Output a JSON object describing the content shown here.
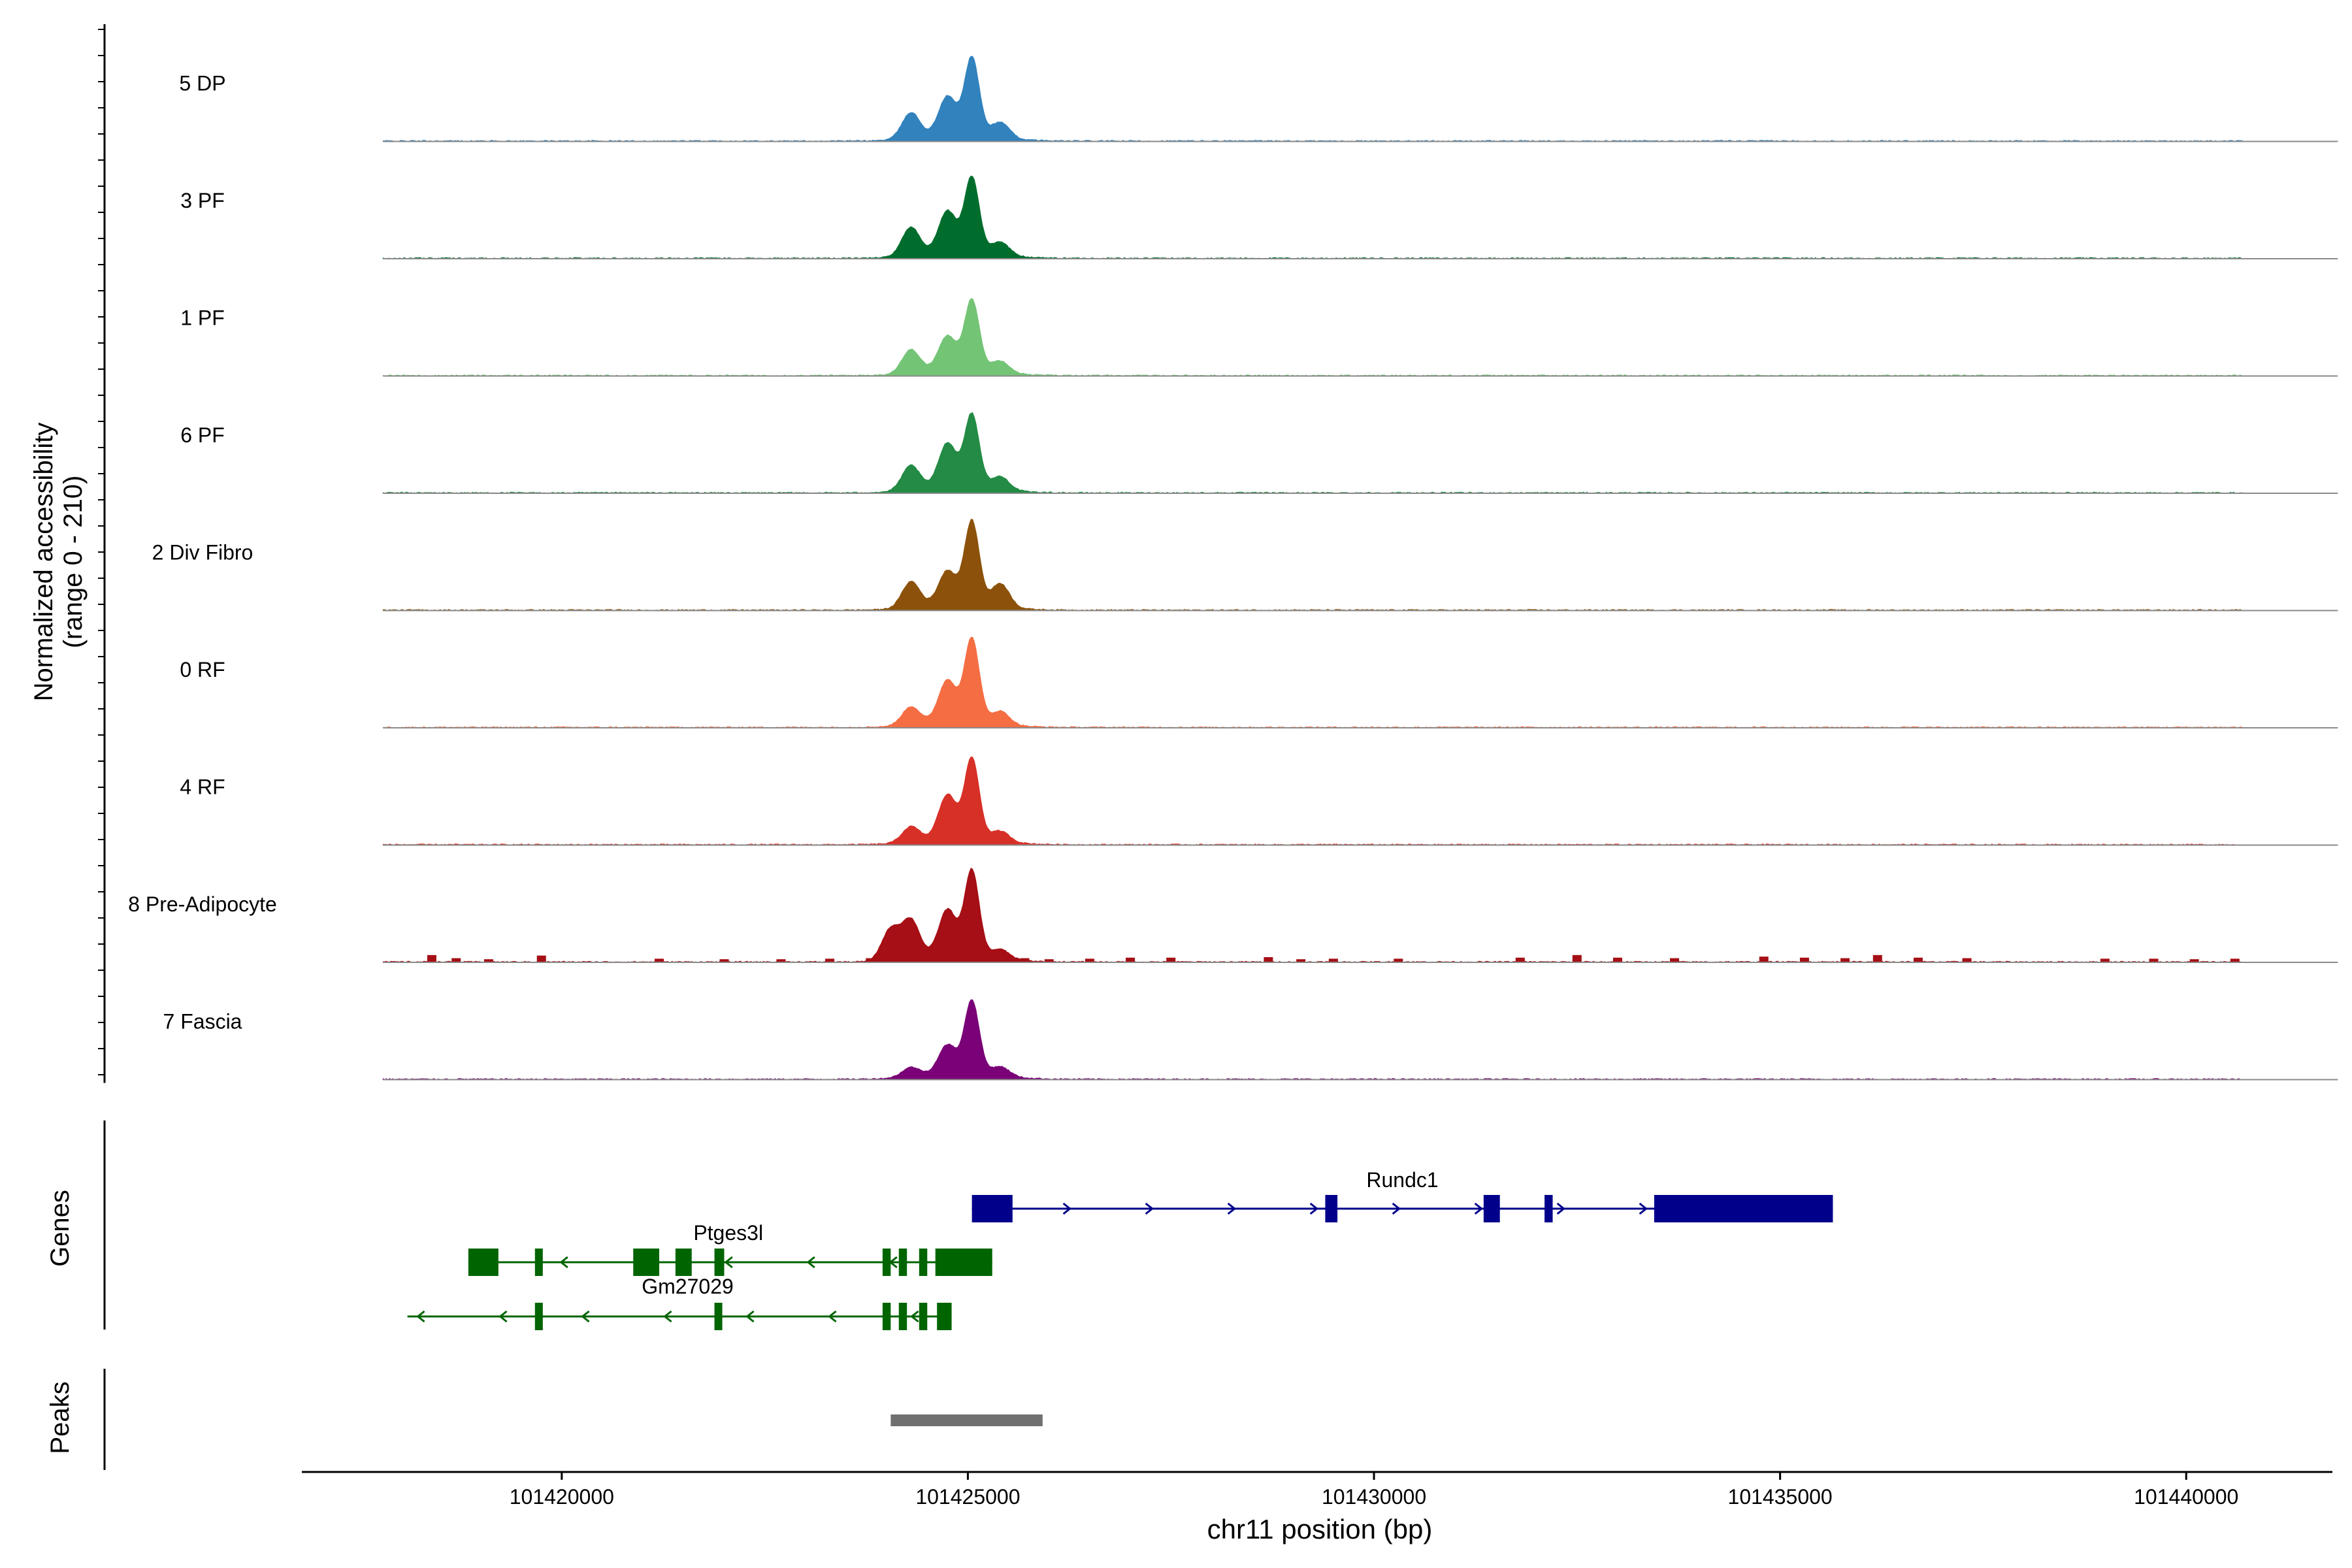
{
  "chart_data": {
    "type": "area",
    "title": "",
    "y_axis_label": "Normalized accessibility",
    "y_axis_range_label": "(range 0 - 210)",
    "ylim": [
      0,
      210
    ],
    "xlabel": "chr11 position (bp)",
    "xlim": [
      101416800,
      101441800
    ],
    "x_ticks": [
      101420000,
      101425000,
      101430000,
      101435000,
      101440000
    ],
    "x_tick_labels": [
      "101420000",
      "101425000",
      "101430000",
      "101435000",
      "101440000"
    ],
    "coverage_extent": [
      101417800,
      101440700
    ],
    "tracks": [
      {
        "name": "5 DP",
        "color": "#3182BD",
        "peaks": [
          {
            "x": 101424300,
            "y": 50
          },
          {
            "x": 101424750,
            "y": 75
          },
          {
            "x": 101425050,
            "y": 150
          },
          {
            "x": 101425400,
            "y": 30
          }
        ],
        "background": []
      },
      {
        "name": "3 PF",
        "color": "#006D2C",
        "peaks": [
          {
            "x": 101424300,
            "y": 55
          },
          {
            "x": 101424750,
            "y": 80
          },
          {
            "x": 101425050,
            "y": 145
          },
          {
            "x": 101425400,
            "y": 25
          }
        ],
        "background": []
      },
      {
        "name": "1 PF",
        "color": "#74C476",
        "peaks": [
          {
            "x": 101424300,
            "y": 45
          },
          {
            "x": 101424750,
            "y": 65
          },
          {
            "x": 101425050,
            "y": 135
          },
          {
            "x": 101425400,
            "y": 22
          }
        ],
        "background": []
      },
      {
        "name": "6 PF",
        "color": "#238B45",
        "peaks": [
          {
            "x": 101424300,
            "y": 48
          },
          {
            "x": 101424750,
            "y": 85
          },
          {
            "x": 101425050,
            "y": 140
          },
          {
            "x": 101425400,
            "y": 25
          }
        ],
        "background": []
      },
      {
        "name": "2 Div Fibro",
        "color": "#8C510A",
        "peaks": [
          {
            "x": 101424300,
            "y": 50
          },
          {
            "x": 101424750,
            "y": 65
          },
          {
            "x": 101425050,
            "y": 160
          },
          {
            "x": 101425400,
            "y": 45
          }
        ],
        "background": []
      },
      {
        "name": "0 RF",
        "color": "#F46D43",
        "peaks": [
          {
            "x": 101424300,
            "y": 35
          },
          {
            "x": 101424750,
            "y": 80
          },
          {
            "x": 101425050,
            "y": 160
          },
          {
            "x": 101425400,
            "y": 25
          }
        ],
        "background": []
      },
      {
        "name": "4 RF",
        "color": "#D73027",
        "peaks": [
          {
            "x": 101424300,
            "y": 30
          },
          {
            "x": 101424750,
            "y": 85
          },
          {
            "x": 101425050,
            "y": 155
          },
          {
            "x": 101425400,
            "y": 20
          }
        ],
        "background": []
      },
      {
        "name": "8 Pre-Adipocyte",
        "color": "#A50F15",
        "peaks": [
          {
            "x": 101424050,
            "y": 60
          },
          {
            "x": 101424300,
            "y": 75
          },
          {
            "x": 101424750,
            "y": 90
          },
          {
            "x": 101425050,
            "y": 165
          },
          {
            "x": 101425400,
            "y": 18
          }
        ],
        "background": [
          {
            "x": 101418400,
            "y": 14
          },
          {
            "x": 101418700,
            "y": 8
          },
          {
            "x": 101419100,
            "y": 6
          },
          {
            "x": 101419750,
            "y": 13
          },
          {
            "x": 101421200,
            "y": 7
          },
          {
            "x": 101422000,
            "y": 6
          },
          {
            "x": 101422700,
            "y": 6
          },
          {
            "x": 101423300,
            "y": 7
          },
          {
            "x": 101423800,
            "y": 8
          },
          {
            "x": 101425700,
            "y": 8
          },
          {
            "x": 101426000,
            "y": 6
          },
          {
            "x": 101426500,
            "y": 7
          },
          {
            "x": 101427000,
            "y": 9
          },
          {
            "x": 101427500,
            "y": 9
          },
          {
            "x": 101428700,
            "y": 10
          },
          {
            "x": 101429100,
            "y": 6
          },
          {
            "x": 101429500,
            "y": 7
          },
          {
            "x": 101430300,
            "y": 7
          },
          {
            "x": 101431800,
            "y": 9
          },
          {
            "x": 101432500,
            "y": 14
          },
          {
            "x": 101433000,
            "y": 9
          },
          {
            "x": 101433700,
            "y": 8
          },
          {
            "x": 101434800,
            "y": 11
          },
          {
            "x": 101435300,
            "y": 9
          },
          {
            "x": 101435800,
            "y": 8
          },
          {
            "x": 101436200,
            "y": 14
          },
          {
            "x": 101436700,
            "y": 9
          },
          {
            "x": 101437300,
            "y": 8
          },
          {
            "x": 101439000,
            "y": 7
          },
          {
            "x": 101439600,
            "y": 7
          },
          {
            "x": 101440100,
            "y": 6
          },
          {
            "x": 101440600,
            "y": 7
          }
        ]
      },
      {
        "name": "7 Fascia",
        "color": "#7A0177",
        "peaks": [
          {
            "x": 101424300,
            "y": 18
          },
          {
            "x": 101424750,
            "y": 55
          },
          {
            "x": 101425050,
            "y": 140
          },
          {
            "x": 101425400,
            "y": 18
          }
        ],
        "background": []
      }
    ],
    "genes_label": "Genes",
    "genes": [
      {
        "name": "Rundc1",
        "color": "#00008B",
        "strand": "+",
        "row": 0,
        "start": 101425050,
        "end": 101435650,
        "label_x": 101430350,
        "exons": [
          [
            101425050,
            101425550
          ],
          [
            101429400,
            101429550
          ],
          [
            101431350,
            101431550
          ],
          [
            101432100,
            101432200
          ],
          [
            101433450,
            101435650
          ]
        ]
      },
      {
        "name": "Ptges3l",
        "color": "#006400",
        "strand": "-",
        "row": 1,
        "start": 101418850,
        "end": 101425300,
        "label_x": 101422050,
        "exons": [
          [
            101418850,
            101419220
          ],
          [
            101419670,
            101419720
          ],
          [
            101420880,
            101421200
          ],
          [
            101421400,
            101421600
          ],
          [
            101421880,
            101422000
          ],
          [
            101423950,
            101424050
          ],
          [
            101424150,
            101424250
          ],
          [
            101424400,
            101424500
          ],
          [
            101424600,
            101425300
          ]
        ]
      },
      {
        "name": "Gm27029",
        "color": "#006400",
        "strand": "-",
        "row": 2,
        "start": 101418100,
        "end": 101424800,
        "label_x": 101421550,
        "exons": [
          [
            101419670,
            101419720
          ],
          [
            101421880,
            101421950
          ],
          [
            101423950,
            101424050
          ],
          [
            101424150,
            101424250
          ],
          [
            101424400,
            101424500
          ],
          [
            101424650,
            101424700
          ],
          [
            101424620,
            101424800
          ]
        ]
      }
    ],
    "peaks_label": "Peaks",
    "peak_regions": [
      [
        101424050,
        101425920
      ]
    ],
    "peak_color": "#707070"
  }
}
